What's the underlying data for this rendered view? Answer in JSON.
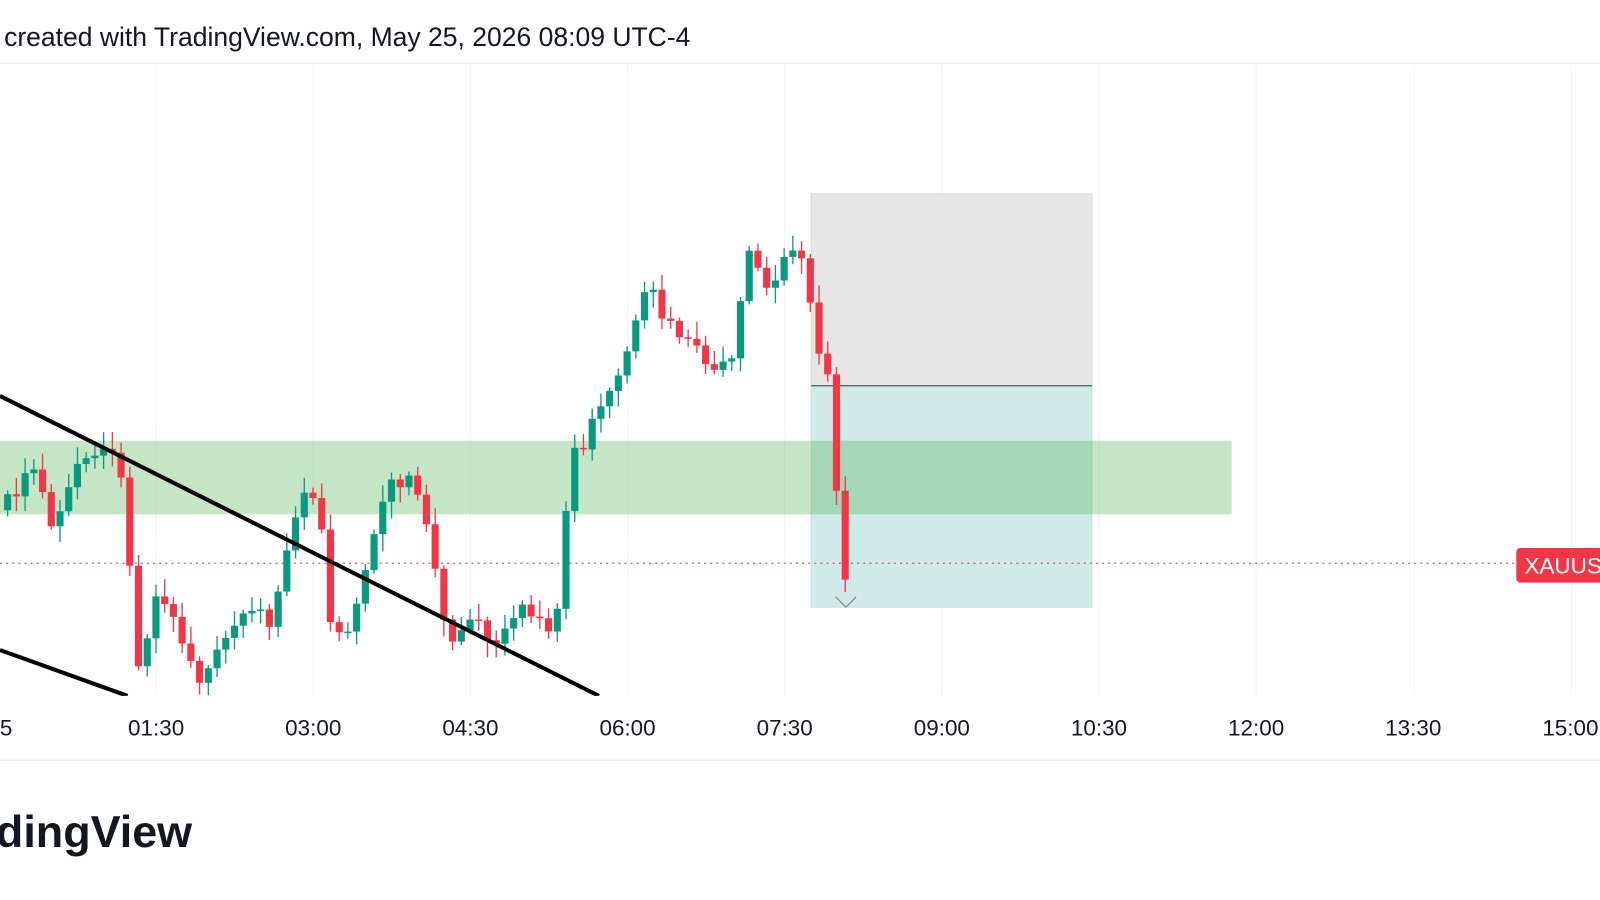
{
  "header": {
    "text": "created with TradingView.com, May 25, 2026 08:09 UTC-4"
  },
  "time_axis": {
    "labels": [
      "5",
      "01:30",
      "03:00",
      "04:30",
      "06:00",
      "07:30",
      "09:00",
      "10:30",
      "12:00",
      "13:30",
      "15:00"
    ]
  },
  "price_label": "XAUUS",
  "logo": "dingView"
}
